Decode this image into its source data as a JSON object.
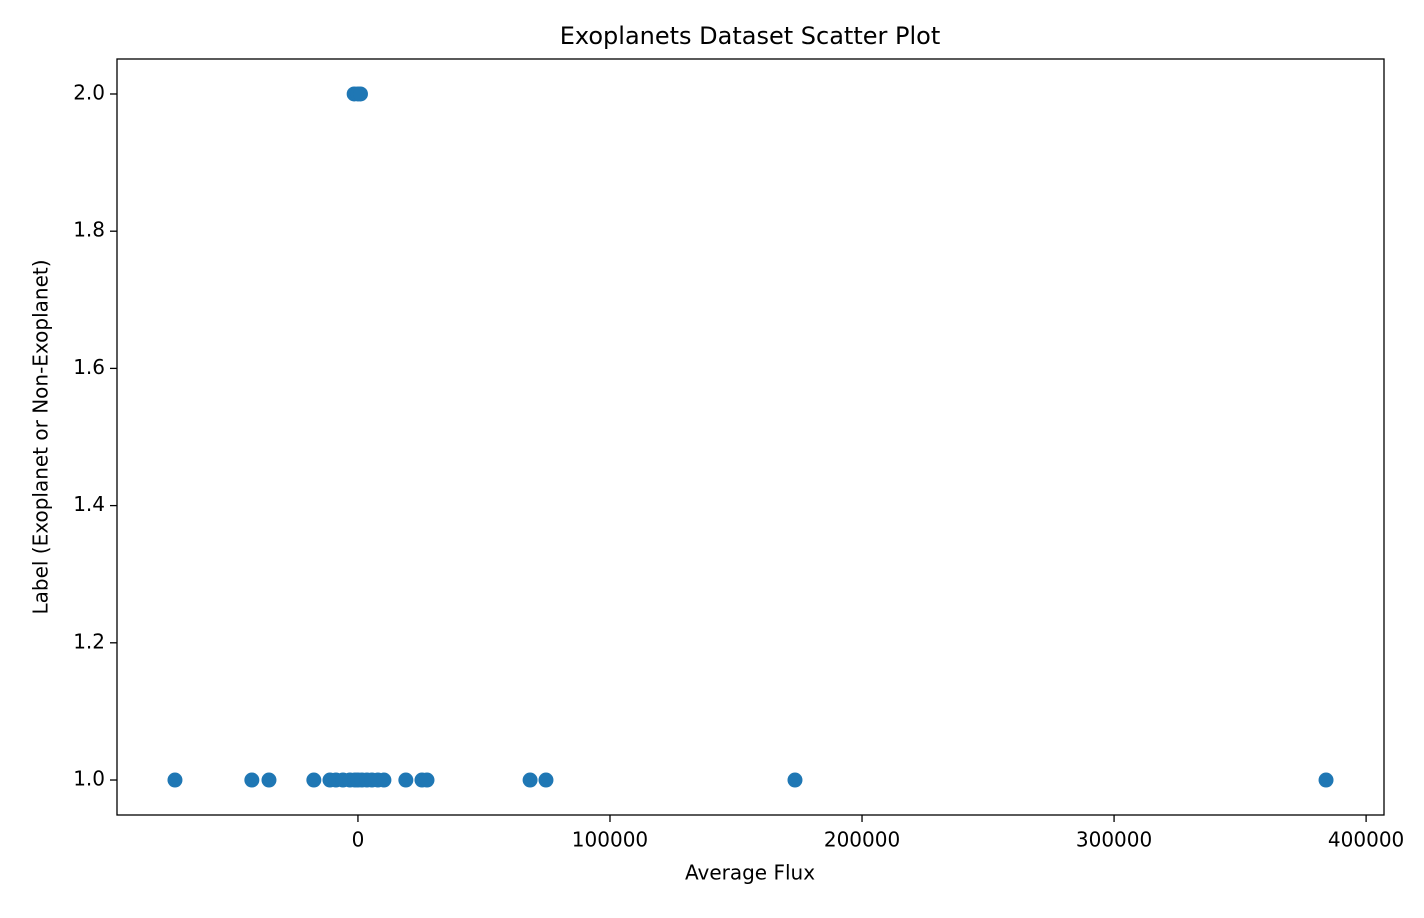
{
  "chart_data": {
    "type": "scatter",
    "title": "Exoplanets Dataset Scatter Plot",
    "x_label": "Average Flux",
    "y_label": "Label (Exoplanet or Non-Exoplanet)",
    "x": [
      -72600,
      -42100,
      -35300,
      -17500,
      -11100,
      -8730,
      -5950,
      -3175,
      -1190,
      0,
      1590,
      3570,
      5560,
      7940,
      10300,
      19000,
      25400,
      27400,
      68300,
      74600,
      173400,
      384100,
      -1500,
      0,
      1000
    ],
    "y": [
      1,
      1,
      1,
      1,
      1,
      1,
      1,
      1,
      1,
      1,
      1,
      1,
      1,
      1,
      1,
      1,
      1,
      1,
      1,
      1,
      1,
      1,
      2,
      2,
      2
    ],
    "color": "#1f77b4",
    "xlim": [
      -95600,
      407100
    ],
    "ylim": [
      0.949,
      2.051
    ],
    "xticks": [
      0,
      100000,
      200000,
      300000,
      400000
    ],
    "yticks": [
      {
        "value": 1,
        "label": "1.0"
      },
      1.2,
      1.4,
      1.6,
      1.8,
      {
        "value": 2,
        "label": "2.0"
      }
    ],
    "grid": false
  }
}
